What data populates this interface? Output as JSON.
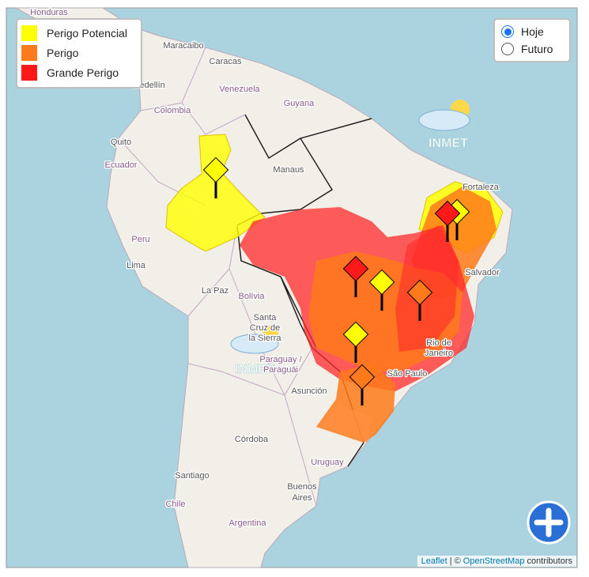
{
  "legend": {
    "items": [
      {
        "label": "Perigo Potencial",
        "color": "#ffff00"
      },
      {
        "label": "Perigo",
        "color": "#ff7a1a"
      },
      {
        "label": "Grande Perigo",
        "color": "#ff1a1a"
      }
    ]
  },
  "controls": {
    "options": [
      {
        "label": "Hoje",
        "selected": true
      },
      {
        "label": "Futuro",
        "selected": false
      }
    ]
  },
  "logo": "INMET",
  "map": {
    "labels": [
      "Honduras",
      "Maracaibo",
      "Caracas",
      "Medellín",
      "Venezuela",
      "Colombia",
      "Guyana",
      "Quito",
      "Ecuador",
      "Manaus",
      "Fortaleza",
      "Peru",
      "Lima",
      "Salvador",
      "La Paz",
      "Bolívia",
      "Santa",
      "Cruz de",
      "la Sierra",
      "Paraguay /",
      "Paraguái",
      "Asunción",
      "São Paulo",
      "Córdoba",
      "Uruguay",
      "Santiago",
      "Buenos",
      "Aires",
      "Chile",
      "Argentina",
      "Rio de",
      "Janeiro"
    ]
  },
  "attribution": {
    "leaflet": "Leaflet",
    "separator": "| ©",
    "osm": "OpenStreetMap",
    "suffix": "contributors"
  }
}
